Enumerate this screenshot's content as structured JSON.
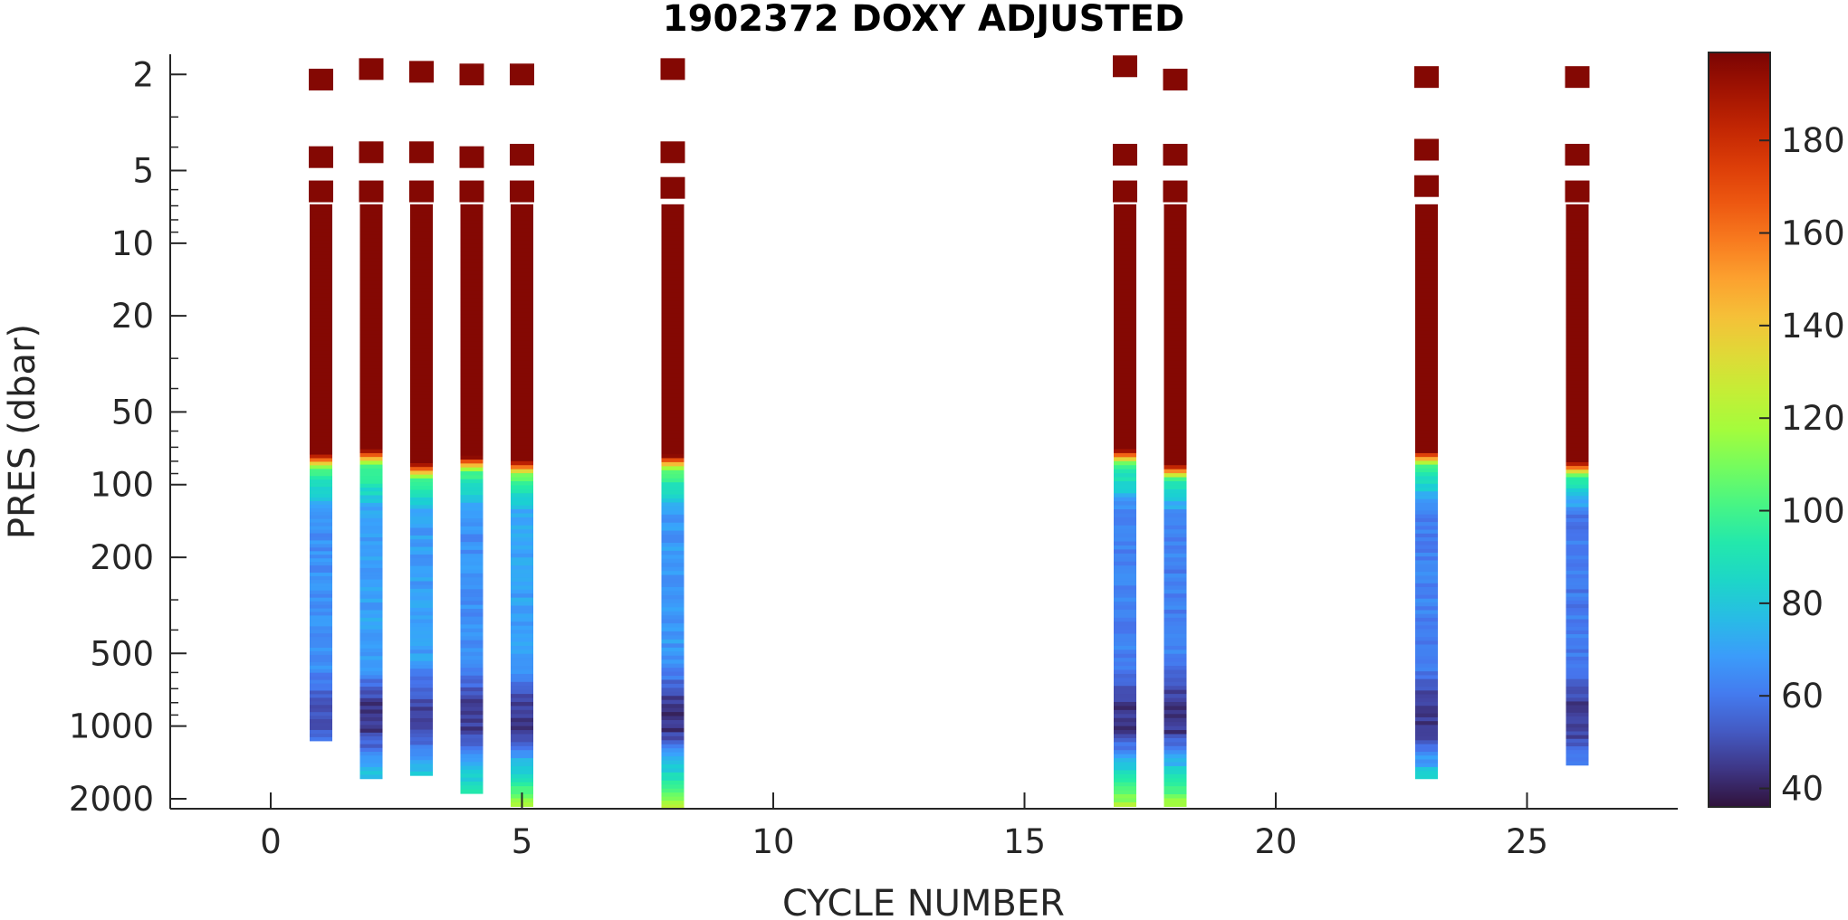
{
  "chart_data": {
    "type": "heatmap",
    "title": "1902372  DOXY ADJUSTED",
    "xlabel": "CYCLE NUMBER",
    "ylabel": "PRES (dbar)",
    "xlim": [
      -2,
      28
    ],
    "ylim": [
      1.65,
      2200
    ],
    "y_scale": "log",
    "y_reversed": true,
    "x_ticks": [
      0,
      5,
      10,
      15,
      20,
      25
    ],
    "x_tick_labels": [
      "0",
      "5",
      "10",
      "15",
      "20",
      "25"
    ],
    "y_ticks": [
      2,
      5,
      10,
      20,
      50,
      100,
      200,
      500,
      1000,
      2000
    ],
    "y_tick_labels": [
      "2",
      "5",
      "10",
      "20",
      "50",
      "100",
      "200",
      "500",
      "1000",
      "2000"
    ],
    "colorbar": {
      "colormap": "turbo",
      "range": [
        36,
        199
      ],
      "ticks": [
        40,
        60,
        80,
        100,
        120,
        140,
        160,
        180
      ],
      "tick_labels": [
        "40",
        "60",
        "80",
        "100",
        "120",
        "140",
        "160",
        "180"
      ]
    },
    "grid": false,
    "profiles": [
      {
        "cycle": 1,
        "surface_pres": [
          2.1,
          4.4,
          6.1
        ],
        "max_pres": 1150,
        "oxycline_pres": 75,
        "mixed_value": 197,
        "upper_value": 66,
        "omz_value": 52,
        "deep_value": 58
      },
      {
        "cycle": 2,
        "surface_pres": [
          1.9,
          4.2,
          6.1
        ],
        "max_pres": 1650,
        "oxycline_pres": 72,
        "mixed_value": 197,
        "upper_value": 70,
        "omz_value": 45,
        "deep_value": 82
      },
      {
        "cycle": 3,
        "surface_pres": [
          1.95,
          4.2,
          6.1
        ],
        "max_pres": 1600,
        "oxycline_pres": 82,
        "mixed_value": 197,
        "upper_value": 69,
        "omz_value": 48,
        "deep_value": 80
      },
      {
        "cycle": 4,
        "surface_pres": [
          2.0,
          4.4,
          6.1
        ],
        "max_pres": 1900,
        "oxycline_pres": 77,
        "mixed_value": 197,
        "upper_value": 66,
        "omz_value": 46,
        "deep_value": 95
      },
      {
        "cycle": 5,
        "surface_pres": [
          2.0,
          4.3,
          6.1
        ],
        "max_pres": 2150,
        "oxycline_pres": 80,
        "mixed_value": 197,
        "upper_value": 70,
        "omz_value": 45,
        "deep_value": 118
      },
      {
        "cycle": 8,
        "surface_pres": [
          1.9,
          4.2,
          5.9
        ],
        "max_pres": 2200,
        "oxycline_pres": 76,
        "mixed_value": 197,
        "upper_value": 68,
        "omz_value": 44,
        "deep_value": 122
      },
      {
        "cycle": 17,
        "surface_pres": [
          1.85,
          4.3,
          6.1
        ],
        "max_pres": 2150,
        "oxycline_pres": 72,
        "mixed_value": 197,
        "upper_value": 62,
        "omz_value": 44,
        "deep_value": 120
      },
      {
        "cycle": 18,
        "surface_pres": [
          2.1,
          4.3,
          6.1
        ],
        "max_pres": 2150,
        "oxycline_pres": 83,
        "mixed_value": 197,
        "upper_value": 62,
        "omz_value": 44,
        "deep_value": 118
      },
      {
        "cycle": 23,
        "surface_pres": [
          2.05,
          4.1,
          5.8
        ],
        "max_pres": 1650,
        "oxycline_pres": 73,
        "mixed_value": 197,
        "upper_value": 62,
        "omz_value": 45,
        "deep_value": 84
      },
      {
        "cycle": 26,
        "surface_pres": [
          2.05,
          4.3,
          6.1
        ],
        "max_pres": 1450,
        "oxycline_pres": 81,
        "mixed_value": 197,
        "upper_value": 60,
        "omz_value": 46,
        "deep_value": 63
      }
    ]
  }
}
